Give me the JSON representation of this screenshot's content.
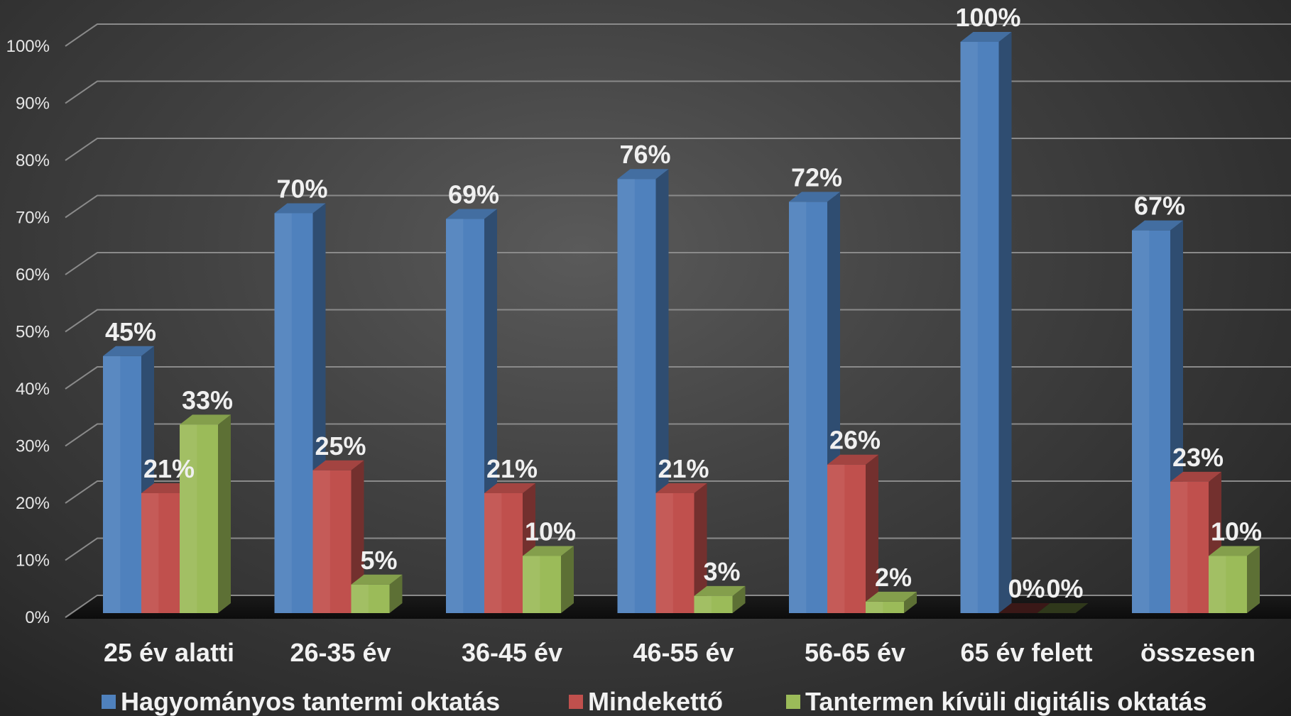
{
  "chart_data": {
    "type": "bar",
    "categories": [
      "25 év alatti",
      "26-35 év",
      "36-45 év",
      "46-55 év",
      "56-65 év",
      "65 év felett",
      "összesen"
    ],
    "series": [
      {
        "name": "Hagyományos tantermi oktatás",
        "values": [
          45,
          70,
          69,
          76,
          72,
          100,
          67
        ],
        "labels": [
          "45%",
          "70%",
          "69%",
          "76%",
          "72%",
          "100%",
          "67%"
        ],
        "color": "#4f81bd"
      },
      {
        "name": "Mindekettő",
        "values": [
          21,
          25,
          21,
          21,
          26,
          0,
          23
        ],
        "labels": [
          "21%",
          "25%",
          "21%",
          "21%",
          "26%",
          "0%",
          "23%"
        ],
        "color": "#c0504d"
      },
      {
        "name": "Tantermen kívüli digitális oktatás",
        "values": [
          33,
          5,
          10,
          3,
          2,
          0,
          10
        ],
        "labels": [
          "33%",
          "5%",
          "10%",
          "3%",
          "2%",
          "0%",
          "10%"
        ],
        "color": "#9bbb59"
      }
    ],
    "yticks": [
      "0%",
      "10%",
      "20%",
      "30%",
      "40%",
      "50%",
      "60%",
      "70%",
      "80%",
      "90%",
      "100%"
    ],
    "ylim": [
      0,
      100
    ],
    "grid": true,
    "legend_position": "bottom",
    "title": "",
    "xlabel": "",
    "ylabel": ""
  }
}
